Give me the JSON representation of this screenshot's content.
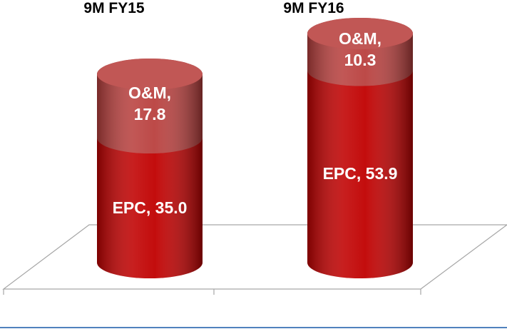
{
  "chart_data": {
    "type": "bar3d-stacked",
    "categories": [
      "9M FY15",
      "9M FY16"
    ],
    "series": [
      {
        "color": "#c00000",
        "values": [
          35.0,
          53.9
        ],
        "value_labels": [
          "EPC, 35.0",
          "EPC, 53.9"
        ]
      },
      {
        "color": "#b9403e",
        "values": [
          17.8,
          10.3
        ],
        "value_labels": [
          "O&M, 17.8",
          "O&M, 10.3"
        ]
      }
    ]
  }
}
